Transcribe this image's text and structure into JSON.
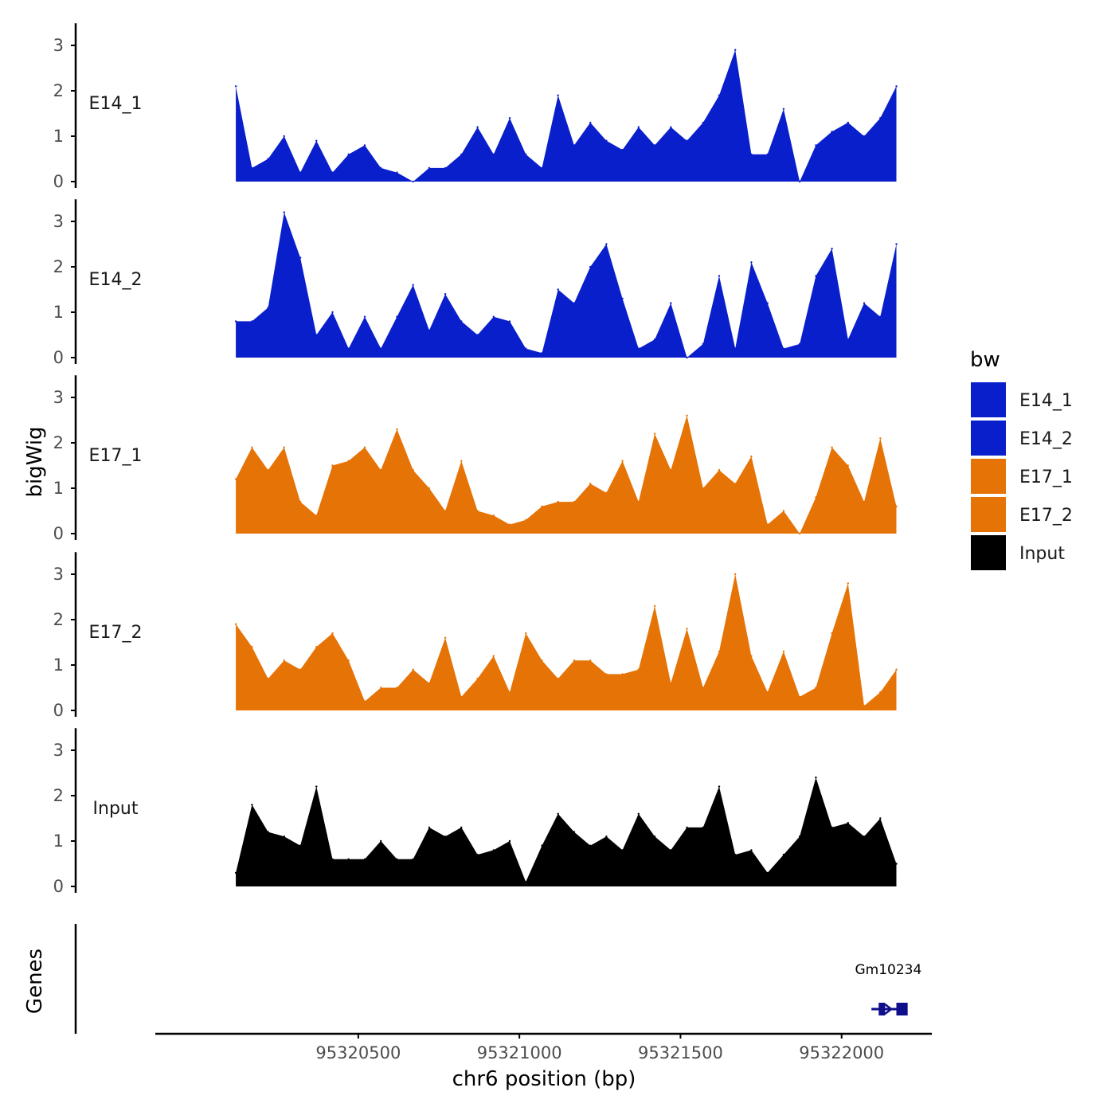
{
  "chart_data": {
    "type": "area",
    "ylabel": "bigWig",
    "xlabel": "chr6 position (bp)",
    "genes_label": "Genes",
    "xlim": [
      95319870,
      95322280
    ],
    "ylim": [
      0,
      3.4
    ],
    "x_ticks": [
      95320500,
      95321000,
      95321500,
      95322000
    ],
    "y_ticks": [
      0,
      1,
      2,
      3
    ],
    "legend": {
      "title": "bw",
      "entries": [
        {
          "label": "E14_1",
          "color": "#0A1FCC"
        },
        {
          "label": "E14_2",
          "color": "#0A1FCC"
        },
        {
          "label": "E17_1",
          "color": "#E67306"
        },
        {
          "label": "E17_2",
          "color": "#E67306"
        },
        {
          "label": "Input",
          "color": "#000000"
        }
      ]
    },
    "x": [
      95320120,
      95320170,
      95320220,
      95320270,
      95320320,
      95320370,
      95320420,
      95320470,
      95320520,
      95320570,
      95320620,
      95320670,
      95320720,
      95320770,
      95320820,
      95320870,
      95320920,
      95320970,
      95321020,
      95321070,
      95321120,
      95321170,
      95321220,
      95321270,
      95321320,
      95321370,
      95321420,
      95321470,
      95321520,
      95321570,
      95321620,
      95321670,
      95321720,
      95321770,
      95321820,
      95321870,
      95321920,
      95321970,
      95322020,
      95322070,
      95322120,
      95322170
    ],
    "series": [
      {
        "name": "E14_1",
        "color": "#0A1FCC",
        "values": [
          2.1,
          0.3,
          0.5,
          1.0,
          0.2,
          0.9,
          0.2,
          0.6,
          0.8,
          0.3,
          0.2,
          0.0,
          0.3,
          0.3,
          0.6,
          1.2,
          0.6,
          1.4,
          0.6,
          0.3,
          1.9,
          0.8,
          1.3,
          0.9,
          0.7,
          1.2,
          0.8,
          1.2,
          0.9,
          1.3,
          1.9,
          2.9,
          0.6,
          0.6,
          1.6,
          0.0,
          0.8,
          1.1,
          1.3,
          1.0,
          1.4,
          2.1
        ]
      },
      {
        "name": "E14_2",
        "color": "#0A1FCC",
        "values": [
          0.8,
          0.8,
          1.1,
          3.2,
          2.2,
          0.5,
          1.0,
          0.2,
          0.9,
          0.2,
          0.9,
          1.6,
          0.6,
          1.4,
          0.8,
          0.5,
          0.9,
          0.8,
          0.2,
          0.1,
          1.5,
          1.2,
          2.0,
          2.5,
          1.3,
          0.2,
          0.4,
          1.2,
          0.0,
          0.3,
          1.8,
          0.2,
          2.1,
          1.2,
          0.2,
          0.3,
          1.8,
          2.4,
          0.4,
          1.2,
          0.9,
          2.5
        ]
      },
      {
        "name": "E17_1",
        "color": "#E67306",
        "values": [
          1.2,
          1.9,
          1.4,
          1.9,
          0.7,
          0.4,
          1.5,
          1.6,
          1.9,
          1.4,
          2.3,
          1.4,
          1.0,
          0.5,
          1.6,
          0.5,
          0.4,
          0.2,
          0.3,
          0.6,
          0.7,
          0.7,
          1.1,
          0.9,
          1.6,
          0.7,
          2.2,
          1.4,
          2.6,
          1.0,
          1.4,
          1.1,
          1.7,
          0.2,
          0.5,
          0.0,
          0.8,
          1.9,
          1.5,
          0.7,
          2.1,
          0.6
        ]
      },
      {
        "name": "E17_2",
        "color": "#E67306",
        "values": [
          1.9,
          1.4,
          0.7,
          1.1,
          0.9,
          1.4,
          1.7,
          1.1,
          0.2,
          0.5,
          0.5,
          0.9,
          0.6,
          1.6,
          0.3,
          0.7,
          1.2,
          0.4,
          1.7,
          1.1,
          0.7,
          1.1,
          1.1,
          0.8,
          0.8,
          0.9,
          2.3,
          0.6,
          1.8,
          0.5,
          1.3,
          3.0,
          1.2,
          0.4,
          1.3,
          0.3,
          0.5,
          1.7,
          2.8,
          0.1,
          0.4,
          0.9
        ]
      },
      {
        "name": "Input",
        "color": "#000000",
        "values": [
          0.3,
          1.8,
          1.2,
          1.1,
          0.9,
          2.2,
          0.6,
          0.6,
          0.6,
          1.0,
          0.6,
          0.6,
          1.3,
          1.1,
          1.3,
          0.7,
          0.8,
          1.0,
          0.1,
          0.9,
          1.6,
          1.2,
          0.9,
          1.1,
          0.8,
          1.6,
          1.1,
          0.8,
          1.3,
          1.3,
          2.2,
          0.7,
          0.8,
          0.3,
          0.7,
          1.1,
          2.4,
          1.3,
          1.4,
          1.1,
          1.5,
          0.5
        ]
      }
    ],
    "genes": [
      {
        "name": "Gm10234",
        "start": 95322100,
        "end": 95322200,
        "strand": "+",
        "exons": [
          [
            95322115,
            95322135
          ],
          [
            95322170,
            95322205
          ]
        ],
        "color": "#0F0F8C"
      }
    ]
  }
}
